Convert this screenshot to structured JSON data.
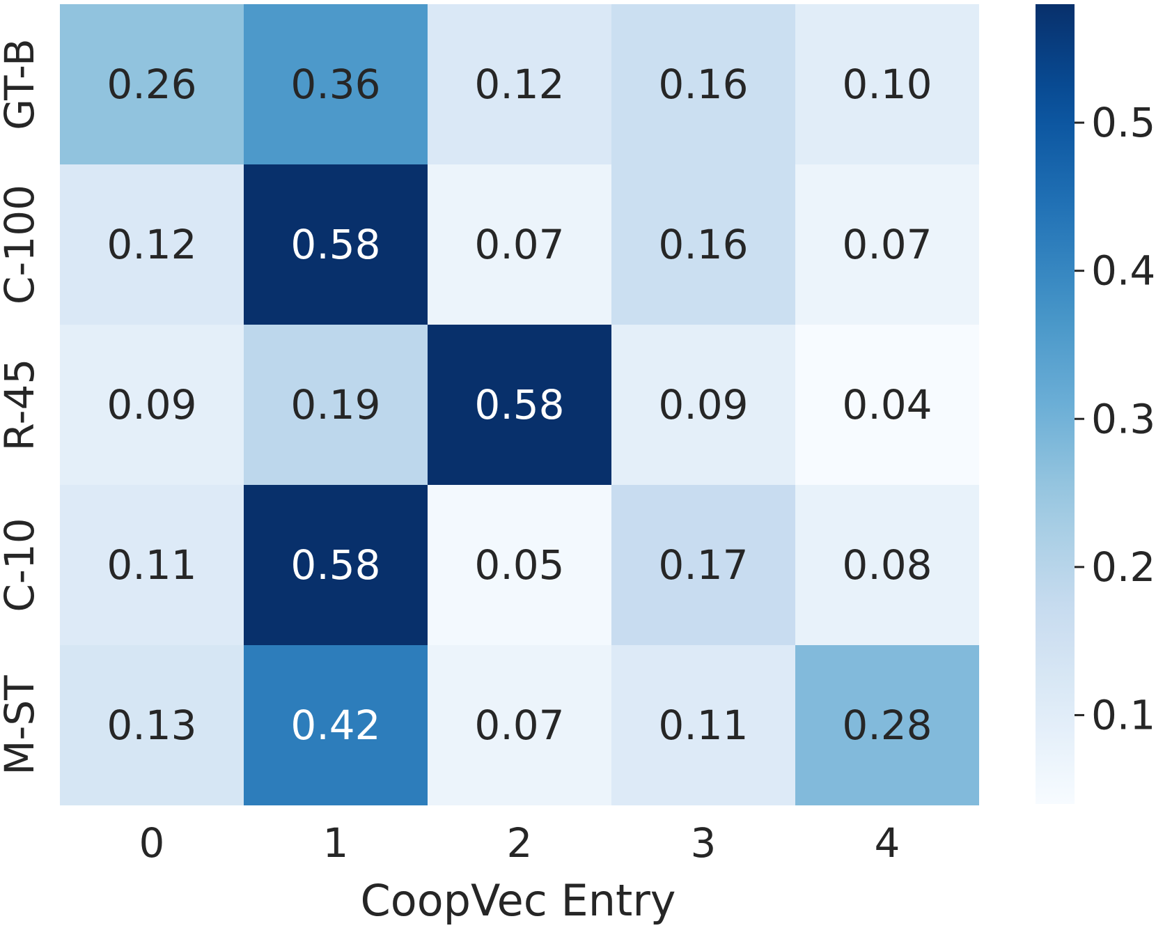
{
  "chart_data": {
    "type": "heatmap",
    "xlabel": "CoopVec Entry",
    "ylabel": "",
    "x_categories": [
      "0",
      "1",
      "2",
      "3",
      "4"
    ],
    "y_categories": [
      "GT-B",
      "C-100",
      "R-45",
      "C-10",
      "M-ST"
    ],
    "values": [
      [
        0.26,
        0.36,
        0.12,
        0.16,
        0.1
      ],
      [
        0.12,
        0.58,
        0.07,
        0.16,
        0.07
      ],
      [
        0.09,
        0.19,
        0.58,
        0.09,
        0.04
      ],
      [
        0.11,
        0.58,
        0.05,
        0.17,
        0.08
      ],
      [
        0.13,
        0.42,
        0.07,
        0.11,
        0.28
      ]
    ],
    "value_labels": [
      [
        "0.26",
        "0.36",
        "0.12",
        "0.16",
        "0.10"
      ],
      [
        "0.12",
        "0.58",
        "0.07",
        "0.16",
        "0.07"
      ],
      [
        "0.09",
        "0.19",
        "0.58",
        "0.09",
        "0.04"
      ],
      [
        "0.11",
        "0.58",
        "0.05",
        "0.17",
        "0.08"
      ],
      [
        "0.13",
        "0.42",
        "0.07",
        "0.11",
        "0.28"
      ]
    ],
    "colormap": "Blues",
    "colorbar": {
      "vmin": 0.04,
      "vmax": 0.58,
      "ticks": [
        0.1,
        0.2,
        0.3,
        0.4,
        0.5
      ],
      "tick_labels": [
        "0.1",
        "0.2",
        "0.3",
        "0.4",
        "0.5"
      ]
    },
    "annotation_colors": {
      "dark": "#262626",
      "light": "#ffffff"
    }
  }
}
